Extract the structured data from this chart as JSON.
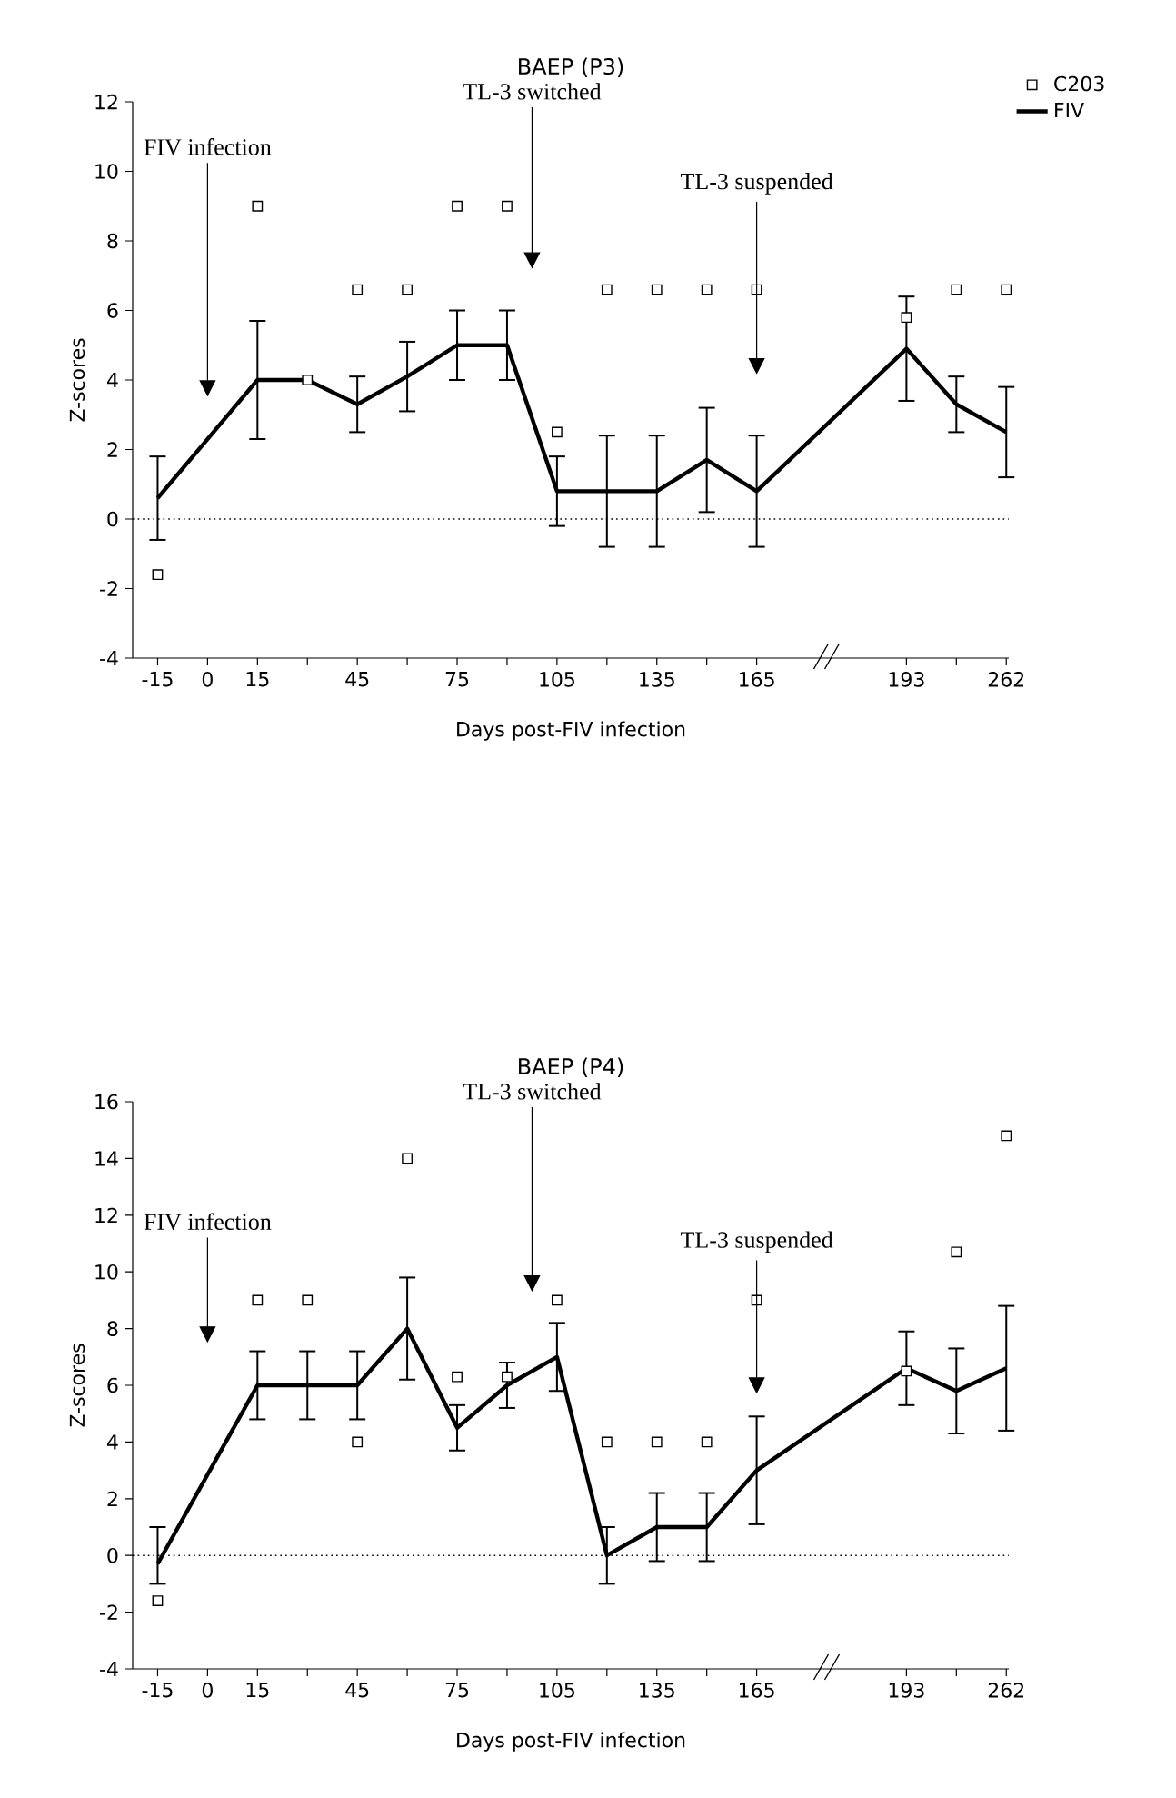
{
  "chart_data": [
    {
      "type": "line",
      "title": "BAEP (P3)",
      "xlabel": "Days post-FIV infection",
      "ylabel": "Z-scores",
      "categories": [
        "-15",
        "0",
        "15",
        null,
        "45",
        null,
        "75",
        null,
        "105",
        null,
        "135",
        null,
        "165",
        null,
        null,
        "193",
        null,
        "262"
      ],
      "series": [
        {
          "name": "C203",
          "type": "scatter",
          "marker": "square",
          "color": "#000000",
          "values": [
            -1.6,
            null,
            9,
            4,
            6.6,
            6.6,
            9,
            9,
            2.5,
            6.6,
            6.6,
            6.6,
            6.6,
            null,
            null,
            5.8,
            6.6,
            6.6
          ]
        },
        {
          "name": "FIV",
          "type": "line",
          "marker": "none",
          "line_style": "solid",
          "color": "#000000",
          "values": [
            0.6,
            null,
            4,
            4,
            3.3,
            4.1,
            5,
            5,
            0.8,
            0.8,
            0.8,
            1.7,
            0.8,
            null,
            null,
            4.9,
            3.3,
            2.5
          ],
          "errors": [
            1.2,
            null,
            1.7,
            null,
            0.8,
            1,
            1,
            1,
            1,
            1.6,
            1.6,
            1.5,
            1.6,
            null,
            null,
            1.5,
            0.8,
            1.3
          ]
        }
      ],
      "ylim": [
        -4,
        12
      ],
      "yticks": [
        -4,
        -2,
        0,
        2,
        4,
        6,
        8,
        10,
        12
      ],
      "ref_lines": [
        {
          "axis": "y",
          "value": 0,
          "line_style": "dotted",
          "color": "#000000"
        }
      ],
      "annotations": [
        "FIV infection",
        "TL-3 switched",
        "TL-3 suspended"
      ],
      "legend": "top right"
    },
    {
      "type": "line",
      "title": "BAEP (P4)",
      "xlabel": "Days post-FIV infection",
      "ylabel": "Z-scores",
      "categories": [
        "-15",
        "0",
        "15",
        null,
        "45",
        null,
        "75",
        null,
        "105",
        null,
        "135",
        null,
        "165",
        null,
        null,
        "193",
        null,
        "262"
      ],
      "series": [
        {
          "type": "scatter",
          "marker": "square",
          "color": "#000000",
          "values": [
            -1.6,
            null,
            9,
            9,
            4,
            14,
            6.3,
            6.3,
            9,
            4,
            4,
            4,
            9,
            null,
            null,
            6.5,
            10.7,
            14.8
          ]
        },
        {
          "type": "line",
          "marker": "none",
          "line_style": "solid",
          "color": "#000000",
          "values": [
            -0.3,
            null,
            6,
            6,
            6,
            8,
            4.5,
            6,
            7,
            0,
            1,
            1,
            3,
            null,
            null,
            6.6,
            5.8,
            6.6
          ],
          "errors": [
            [
              -1,
              1
            ],
            null,
            1.2,
            1.2,
            1.2,
            1.8,
            0.8,
            0.8,
            1.2,
            1,
            1.2,
            1.2,
            1.9,
            null,
            null,
            1.3,
            1.5,
            2.2
          ]
        }
      ],
      "ylim": [
        -4,
        16
      ],
      "yticks": [
        -4,
        -2,
        0,
        2,
        4,
        6,
        8,
        10,
        12,
        14,
        16
      ],
      "ref_lines": [
        {
          "axis": "y",
          "value": 0,
          "line_style": "dotted",
          "color": "#000000"
        }
      ],
      "annotations": [
        "FIV infection",
        "TL-3 switched",
        "TL-3 suspended"
      ]
    }
  ]
}
